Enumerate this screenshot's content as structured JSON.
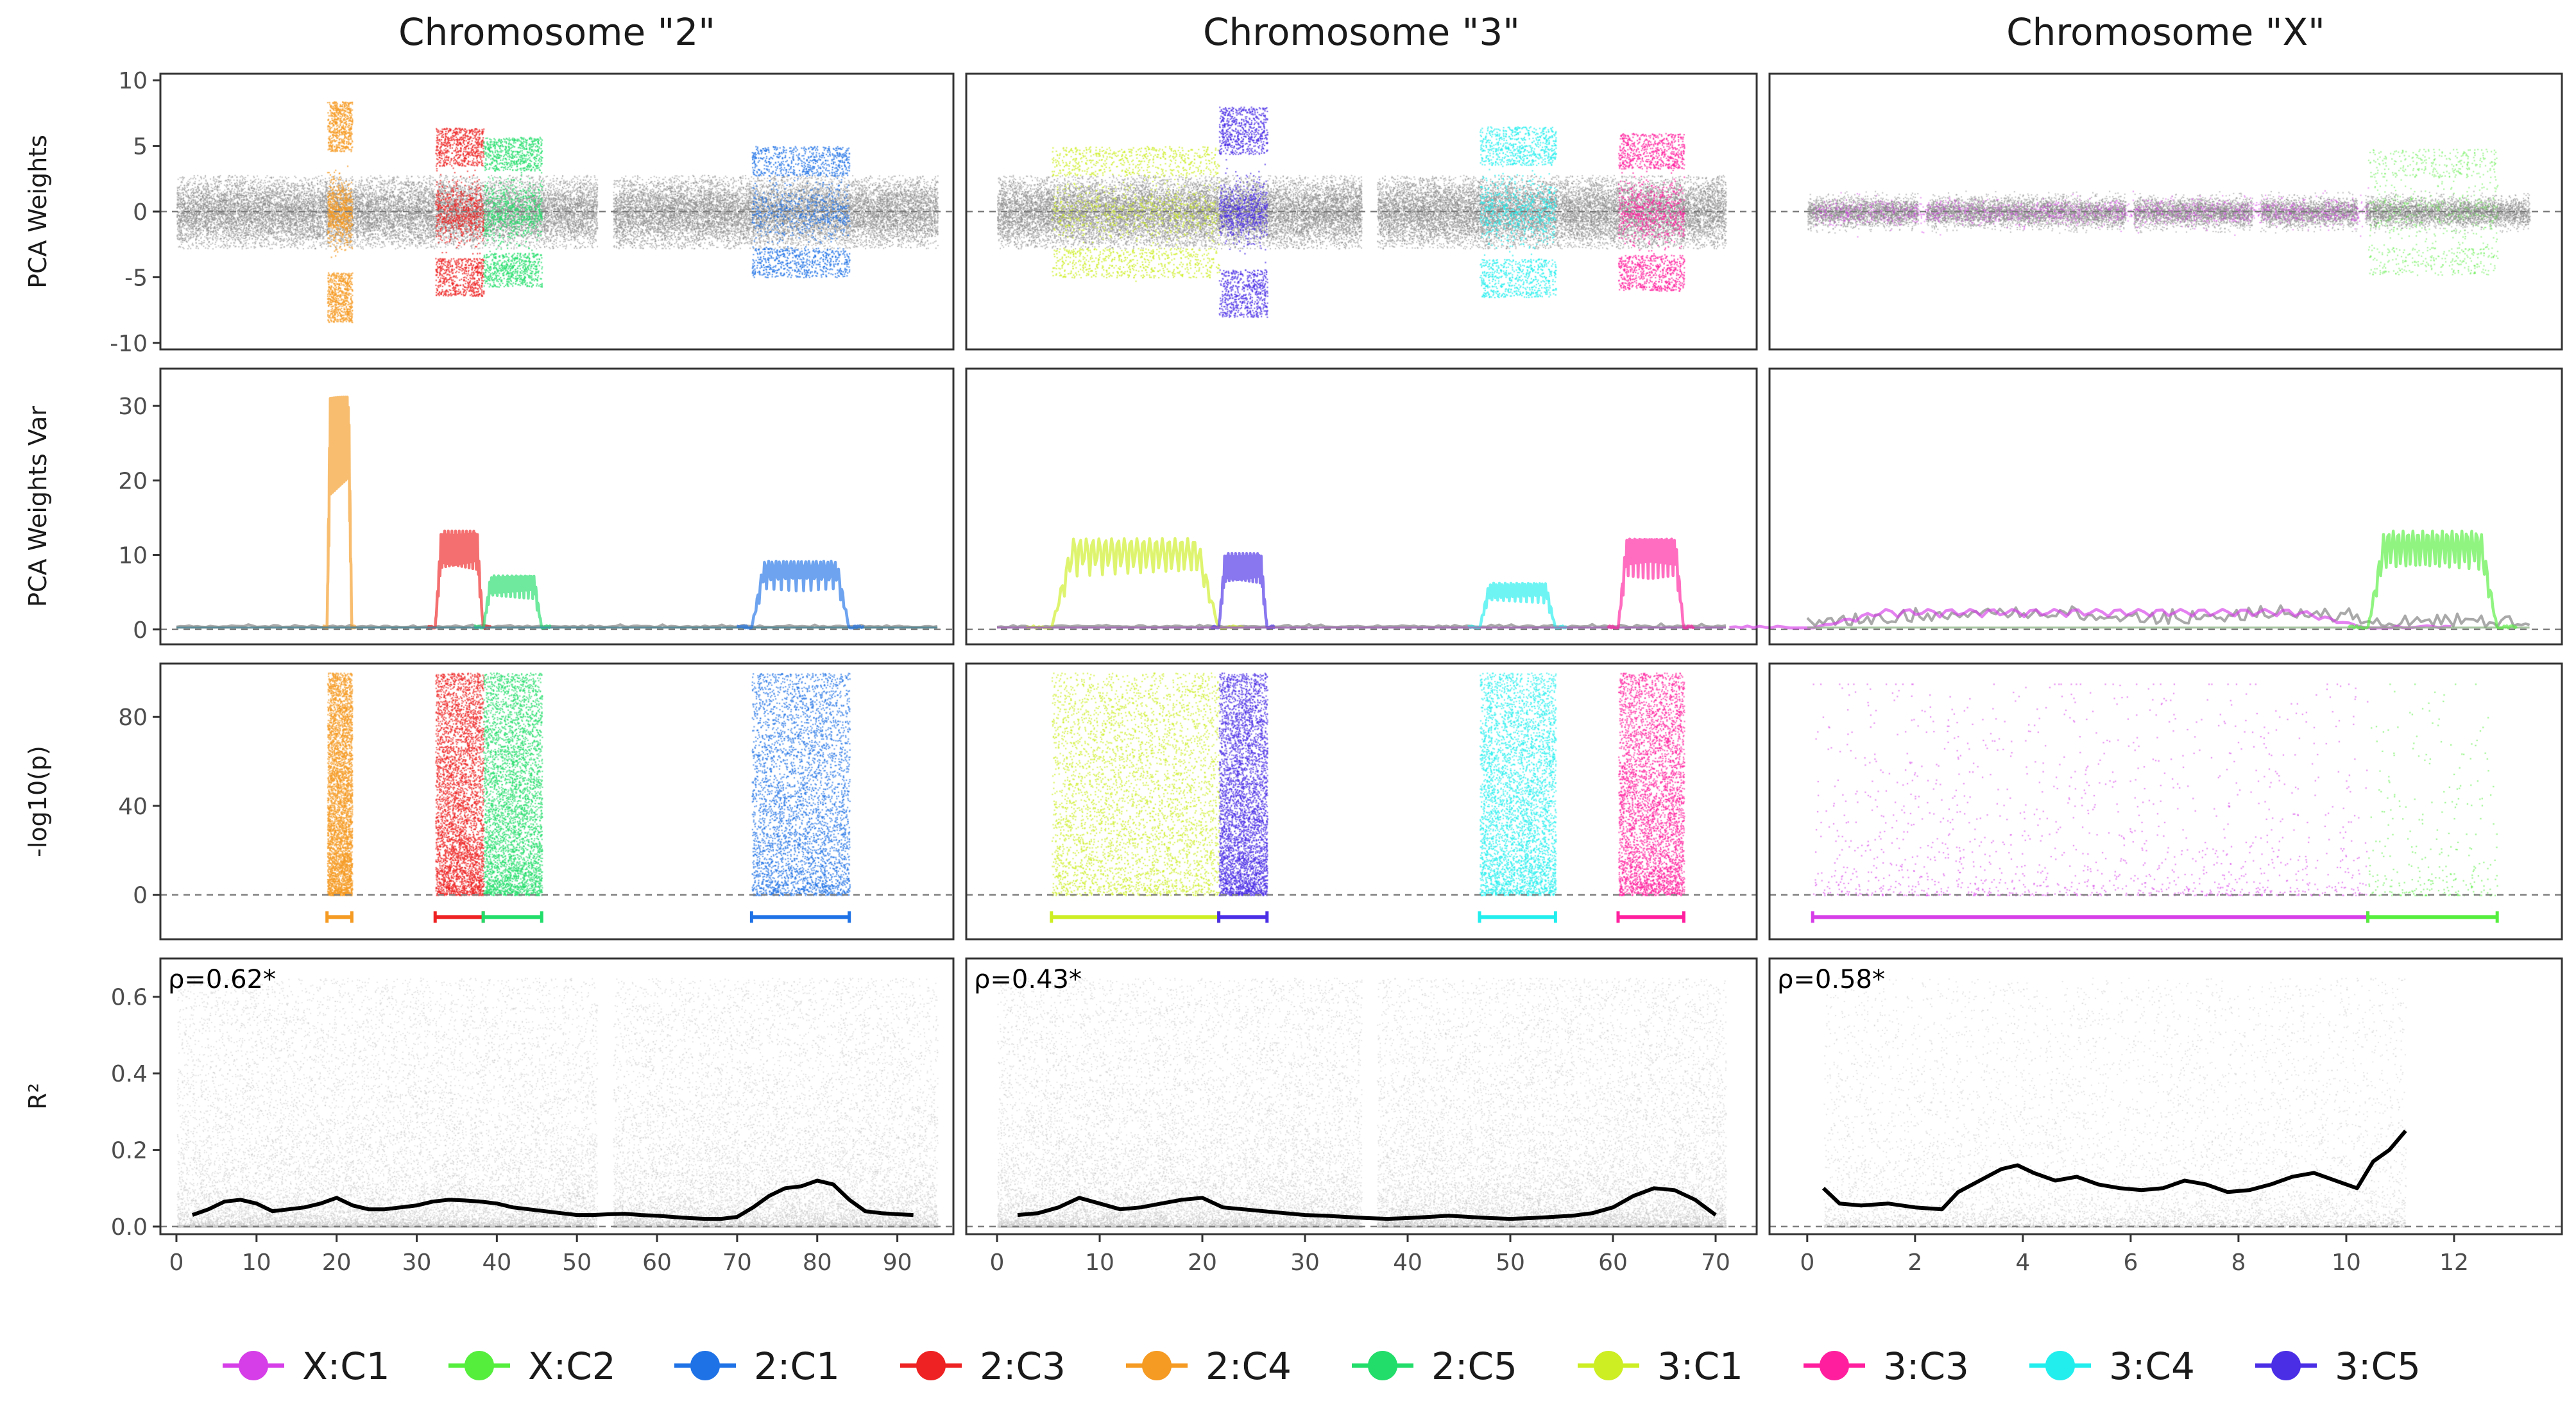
{
  "chart_data": {
    "type": "scatter",
    "panel_columns": [
      {
        "key": "2",
        "title": "Chromosome \"2\"",
        "xlim": [
          -2,
          97
        ],
        "xticks": [
          0,
          10,
          20,
          30,
          40,
          50,
          60,
          70,
          80,
          90
        ],
        "xtick_labels": [
          "0",
          "10",
          "20",
          "30",
          "40",
          "50",
          "60",
          "70",
          "80",
          "90"
        ]
      },
      {
        "key": "3",
        "title": "Chromosome \"3\"",
        "xlim": [
          -3,
          74
        ],
        "xticks": [
          0,
          10,
          20,
          30,
          40,
          50,
          60,
          70
        ],
        "xtick_labels": [
          "0",
          "10",
          "20",
          "30",
          "40",
          "50",
          "60",
          "70"
        ]
      },
      {
        "key": "X",
        "title": "Chromosome \"X\"",
        "xlim": [
          -0.7,
          14
        ],
        "xticks": [
          0,
          2,
          4,
          6,
          8,
          10,
          12
        ],
        "xtick_labels": [
          "0",
          "2",
          "4",
          "6",
          "8",
          "10",
          "12"
        ]
      }
    ],
    "panel_rows": [
      {
        "key": "weights",
        "ylabel": "PCA Weights",
        "ylim": [
          -10.5,
          10.5
        ],
        "yticks": [
          -10,
          -5,
          0,
          5,
          10
        ],
        "ytick_labels": [
          "-10",
          "-5",
          "0",
          "5",
          "10"
        ]
      },
      {
        "key": "var",
        "ylabel": "PCA Weights Var",
        "ylim": [
          -2,
          35
        ],
        "yticks": [
          0,
          10,
          20,
          30
        ],
        "ytick_labels": [
          "0",
          "10",
          "20",
          "30"
        ]
      },
      {
        "key": "logp",
        "ylabel": "-log10(p)",
        "ylim": [
          -20,
          104
        ],
        "yticks": [
          0,
          40,
          80
        ],
        "ytick_labels": [
          "0",
          "40",
          "80"
        ]
      },
      {
        "key": "r2",
        "ylabel": "R²",
        "ylim": [
          -0.02,
          0.7
        ],
        "yticks": [
          0.0,
          0.2,
          0.4,
          0.6
        ],
        "ytick_labels": [
          "0.0",
          "0.2",
          "0.4",
          "0.6"
        ]
      }
    ],
    "legend": {
      "position": "bottom",
      "entries": [
        {
          "label": "X:C1",
          "color": "#d63ee8"
        },
        {
          "label": "X:C2",
          "color": "#55ee3d"
        },
        {
          "label": "2:C1",
          "color": "#1f72e6"
        },
        {
          "label": "2:C3",
          "color": "#ee2222"
        },
        {
          "label": "2:C4",
          "color": "#f59a22"
        },
        {
          "label": "2:C5",
          "color": "#22dd6a"
        },
        {
          "label": "3:C1",
          "color": "#ccee22"
        },
        {
          "label": "3:C3",
          "color": "#ff1f9e"
        },
        {
          "label": "3:C4",
          "color": "#22eeee"
        },
        {
          "label": "3:C5",
          "color": "#4a2ee6"
        }
      ]
    },
    "background_color": "#888888",
    "r2_point_color": "#c4c4c4",
    "chromosomes": {
      "2": {
        "length": 95,
        "gaps": [
          [
            52.5,
            54.5
          ]
        ],
        "rho_label": "ρ=0.62*",
        "clusters": [
          {
            "label": "2:C4",
            "start": 18.8,
            "end": 21.9,
            "w_amp": 8.4,
            "var_peak": 31
          },
          {
            "label": "2:C3",
            "start": 32.3,
            "end": 38.3,
            "w_amp": 6.4,
            "var_peak": 13
          },
          {
            "label": "2:C5",
            "start": 38.3,
            "end": 45.6,
            "w_amp": 5.7,
            "var_peak": 7
          },
          {
            "label": "2:C1",
            "start": 71.8,
            "end": 84.0,
            "w_amp": 5.0,
            "var_peak": 9
          }
        ],
        "r2_trend": {
          "x": [
            2,
            4,
            6,
            8,
            10,
            12,
            14,
            16,
            18,
            20,
            22,
            24,
            26,
            28,
            30,
            32,
            34,
            36,
            38,
            40,
            42,
            44,
            46,
            48,
            50,
            52,
            54,
            56,
            58,
            60,
            62,
            64,
            66,
            68,
            70,
            72,
            74,
            76,
            78,
            80,
            82,
            84,
            86,
            88,
            90,
            92
          ],
          "y": [
            0.03,
            0.045,
            0.065,
            0.07,
            0.06,
            0.04,
            0.045,
            0.05,
            0.06,
            0.075,
            0.055,
            0.045,
            0.045,
            0.05,
            0.055,
            0.065,
            0.07,
            0.068,
            0.065,
            0.06,
            0.05,
            0.045,
            0.04,
            0.035,
            0.03,
            0.03,
            0.032,
            0.033,
            0.03,
            0.028,
            0.025,
            0.022,
            0.02,
            0.02,
            0.025,
            0.05,
            0.08,
            0.1,
            0.105,
            0.12,
            0.11,
            0.07,
            0.04,
            0.035,
            0.032,
            0.03
          ]
        }
      },
      "3": {
        "length": 71,
        "gaps": [
          [
            35.5,
            37
          ]
        ],
        "rho_label": "ρ=0.43*",
        "clusters": [
          {
            "label": "3:C1",
            "start": 5.3,
            "end": 21.6,
            "w_amp": 5.0,
            "var_peak": 12
          },
          {
            "label": "3:C5",
            "start": 21.6,
            "end": 26.3,
            "w_amp": 8.0,
            "var_peak": 10
          },
          {
            "label": "3:C4",
            "start": 47.0,
            "end": 54.4,
            "w_amp": 6.5,
            "var_peak": 6
          },
          {
            "label": "3:C3",
            "start": 60.5,
            "end": 66.9,
            "w_amp": 6.0,
            "var_peak": 12
          }
        ],
        "r2_trend": {
          "x": [
            2,
            4,
            6,
            8,
            10,
            12,
            14,
            16,
            18,
            20,
            22,
            24,
            26,
            28,
            30,
            32,
            34,
            36,
            38,
            40,
            42,
            44,
            46,
            48,
            50,
            52,
            54,
            56,
            58,
            60,
            62,
            64,
            66,
            68,
            70
          ],
          "y": [
            0.03,
            0.035,
            0.05,
            0.075,
            0.06,
            0.045,
            0.05,
            0.06,
            0.07,
            0.075,
            0.05,
            0.045,
            0.04,
            0.035,
            0.03,
            0.028,
            0.025,
            0.022,
            0.02,
            0.022,
            0.025,
            0.028,
            0.025,
            0.022,
            0.02,
            0.022,
            0.025,
            0.028,
            0.035,
            0.05,
            0.08,
            0.1,
            0.095,
            0.07,
            0.03
          ]
        }
      },
      "X": {
        "length": 13.4,
        "gaps": [
          [
            2.05,
            2.2
          ],
          [
            5.9,
            6.05
          ],
          [
            8.25,
            8.4
          ],
          [
            10.2,
            10.35
          ]
        ],
        "rho_label": "ρ=0.58*",
        "clusters": [
          {
            "label": "X:C1",
            "start": 0.1,
            "end": 10.4,
            "w_amp": 1.2,
            "var_peak": 2.5
          },
          {
            "label": "X:C2",
            "start": 10.4,
            "end": 12.8,
            "w_amp": 4.8,
            "var_peak": 13
          }
        ],
        "r2_trend": {
          "x": [
            0.3,
            0.6,
            1.0,
            1.5,
            2.0,
            2.5,
            2.8,
            3.2,
            3.6,
            3.9,
            4.2,
            4.6,
            5.0,
            5.4,
            5.8,
            6.2,
            6.6,
            7.0,
            7.4,
            7.8,
            8.2,
            8.6,
            9.0,
            9.4,
            9.8,
            10.2,
            10.5,
            10.8,
            11.1
          ],
          "y": [
            0.1,
            0.06,
            0.055,
            0.06,
            0.05,
            0.045,
            0.09,
            0.12,
            0.15,
            0.16,
            0.14,
            0.12,
            0.13,
            0.11,
            0.1,
            0.095,
            0.1,
            0.12,
            0.11,
            0.09,
            0.095,
            0.11,
            0.13,
            0.14,
            0.12,
            0.1,
            0.17,
            0.2,
            0.25
          ]
        }
      }
    }
  }
}
